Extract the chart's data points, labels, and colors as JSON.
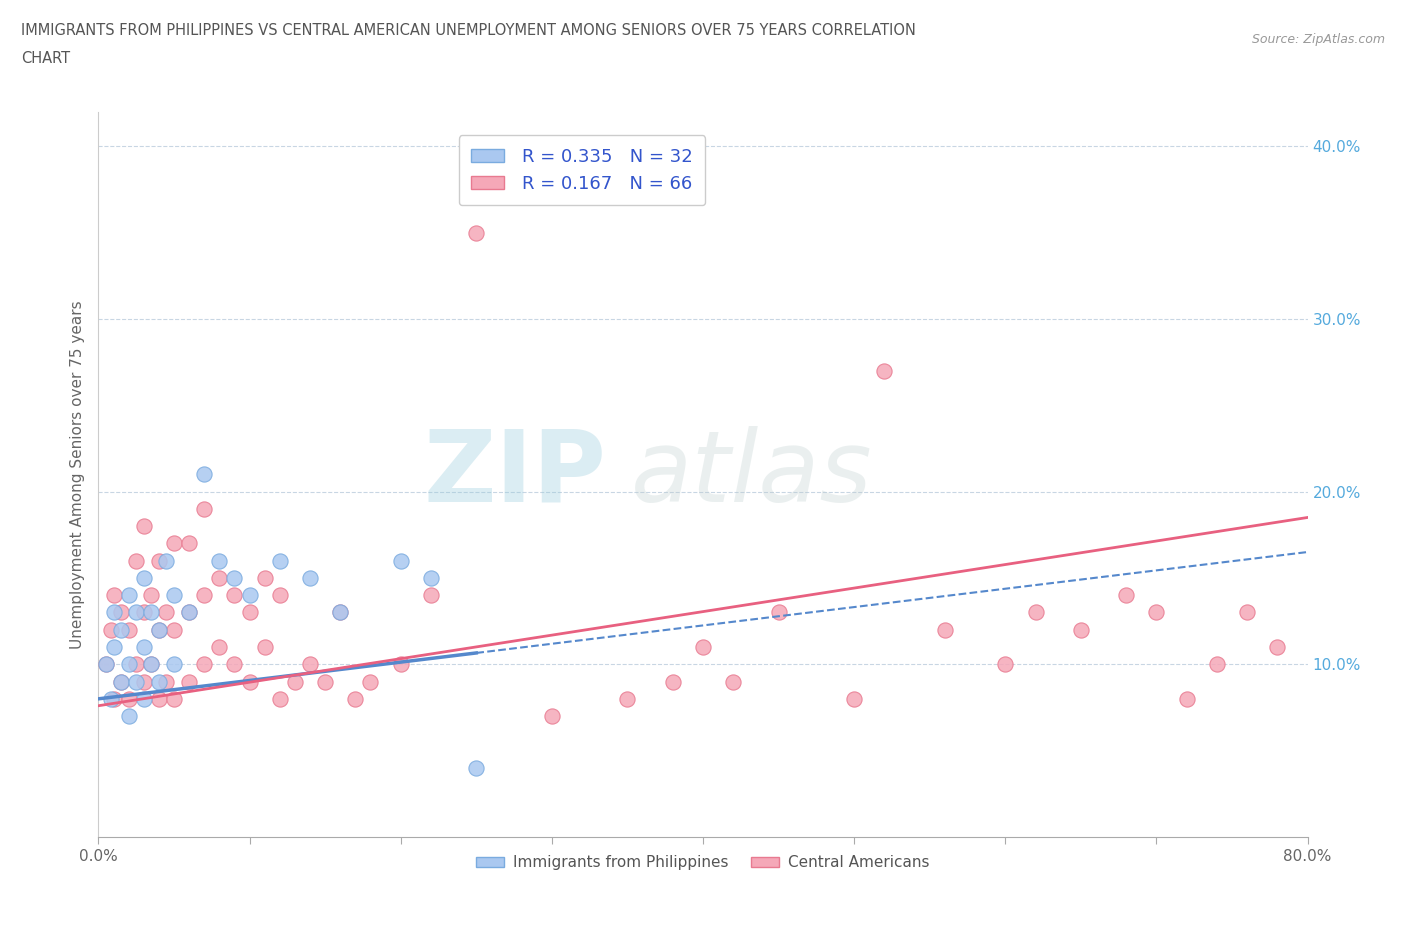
{
  "title_line1": "IMMIGRANTS FROM PHILIPPINES VS CENTRAL AMERICAN UNEMPLOYMENT AMONG SENIORS OVER 75 YEARS CORRELATION",
  "title_line2": "CHART",
  "source": "Source: ZipAtlas.com",
  "ylabel": "Unemployment Among Seniors over 75 years",
  "xlim": [
    0.0,
    0.8
  ],
  "ylim": [
    0.0,
    0.42
  ],
  "xtick_left_label": "0.0%",
  "xtick_right_label": "80.0%",
  "ytick_labels_right": [
    "10.0%",
    "20.0%",
    "30.0%",
    "40.0%"
  ],
  "ytick_values": [
    0.1,
    0.2,
    0.3,
    0.4
  ],
  "blue_R": 0.335,
  "blue_N": 32,
  "pink_R": 0.167,
  "pink_N": 66,
  "blue_color": "#aac8f0",
  "pink_color": "#f5a8b8",
  "blue_edge_color": "#7aabdf",
  "pink_edge_color": "#e87a90",
  "blue_trend_color": "#5588cc",
  "pink_trend_color": "#e86080",
  "legend_text_color": "#3355cc",
  "tick_color_right": "#55aadd",
  "background_color": "#ffffff",
  "blue_x": [
    0.005,
    0.008,
    0.01,
    0.01,
    0.015,
    0.015,
    0.02,
    0.02,
    0.02,
    0.025,
    0.025,
    0.03,
    0.03,
    0.03,
    0.035,
    0.035,
    0.04,
    0.04,
    0.045,
    0.05,
    0.05,
    0.06,
    0.07,
    0.08,
    0.09,
    0.1,
    0.12,
    0.14,
    0.16,
    0.2,
    0.22,
    0.25
  ],
  "blue_y": [
    0.1,
    0.08,
    0.11,
    0.13,
    0.09,
    0.12,
    0.07,
    0.1,
    0.14,
    0.09,
    0.13,
    0.08,
    0.11,
    0.15,
    0.1,
    0.13,
    0.09,
    0.12,
    0.16,
    0.1,
    0.14,
    0.13,
    0.21,
    0.16,
    0.15,
    0.14,
    0.16,
    0.15,
    0.13,
    0.16,
    0.15,
    0.04
  ],
  "pink_x": [
    0.005,
    0.008,
    0.01,
    0.01,
    0.015,
    0.015,
    0.02,
    0.02,
    0.025,
    0.025,
    0.03,
    0.03,
    0.03,
    0.035,
    0.035,
    0.04,
    0.04,
    0.04,
    0.045,
    0.045,
    0.05,
    0.05,
    0.05,
    0.06,
    0.06,
    0.06,
    0.07,
    0.07,
    0.07,
    0.08,
    0.08,
    0.09,
    0.09,
    0.1,
    0.1,
    0.11,
    0.11,
    0.12,
    0.12,
    0.13,
    0.14,
    0.15,
    0.16,
    0.17,
    0.18,
    0.2,
    0.22,
    0.25,
    0.3,
    0.35,
    0.38,
    0.4,
    0.42,
    0.45,
    0.5,
    0.52,
    0.56,
    0.6,
    0.62,
    0.65,
    0.68,
    0.7,
    0.72,
    0.74,
    0.76,
    0.78
  ],
  "pink_y": [
    0.1,
    0.12,
    0.08,
    0.14,
    0.09,
    0.13,
    0.08,
    0.12,
    0.1,
    0.16,
    0.09,
    0.13,
    0.18,
    0.1,
    0.14,
    0.08,
    0.12,
    0.16,
    0.09,
    0.13,
    0.08,
    0.12,
    0.17,
    0.09,
    0.13,
    0.17,
    0.1,
    0.14,
    0.19,
    0.11,
    0.15,
    0.1,
    0.14,
    0.09,
    0.13,
    0.11,
    0.15,
    0.08,
    0.14,
    0.09,
    0.1,
    0.09,
    0.13,
    0.08,
    0.09,
    0.1,
    0.14,
    0.35,
    0.07,
    0.08,
    0.09,
    0.11,
    0.09,
    0.13,
    0.08,
    0.27,
    0.12,
    0.1,
    0.13,
    0.12,
    0.14,
    0.13,
    0.08,
    0.1,
    0.13,
    0.11
  ],
  "blue_trend_x_end": 0.8,
  "pink_trend_x_end": 0.8,
  "blue_trend_start_y": 0.08,
  "blue_trend_end_y": 0.165,
  "pink_trend_start_y": 0.076,
  "pink_trend_end_y": 0.185,
  "watermark_zip_color": "#99ccdd",
  "watermark_atlas_color": "#bbcccc"
}
